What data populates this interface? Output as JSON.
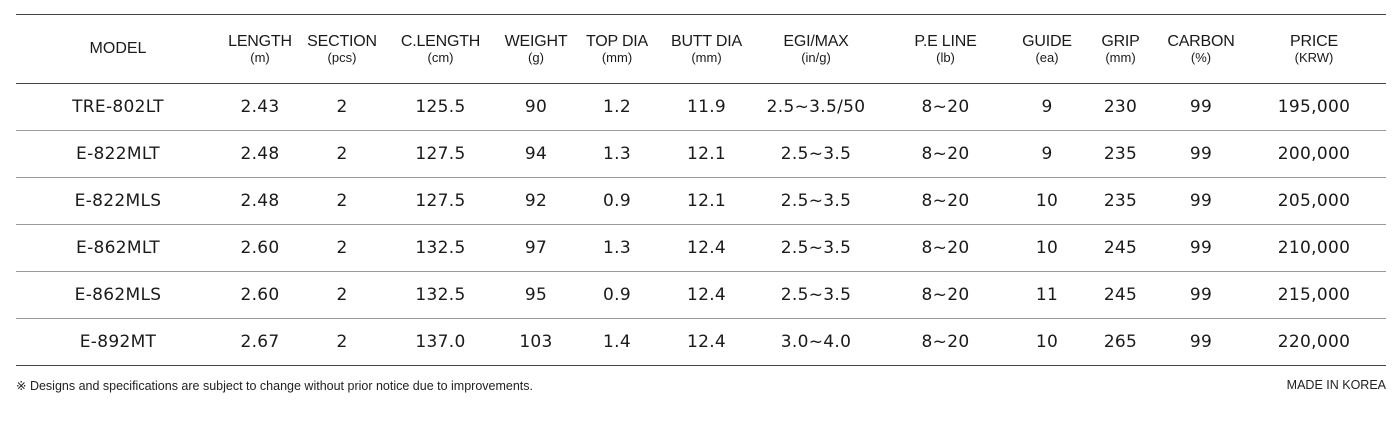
{
  "table": {
    "columns": [
      {
        "label": "MODEL",
        "unit": ""
      },
      {
        "label": "LENGTH",
        "unit": "(m)"
      },
      {
        "label": "SECTION",
        "unit": "(pcs)"
      },
      {
        "label": "C.LENGTH",
        "unit": "(cm)"
      },
      {
        "label": "WEIGHT",
        "unit": "(g)"
      },
      {
        "label": "TOP DIA",
        "unit": "(mm)"
      },
      {
        "label": "BUTT DIA",
        "unit": "(mm)"
      },
      {
        "label": "EGI/MAX",
        "unit": "(in/g)"
      },
      {
        "label": "P.E LINE",
        "unit": "(lb)"
      },
      {
        "label": "GUIDE",
        "unit": "(ea)"
      },
      {
        "label": "GRIP",
        "unit": "(mm)"
      },
      {
        "label": "CARBON",
        "unit": "(%)"
      },
      {
        "label": "PRICE",
        "unit": "(KRW)"
      }
    ],
    "rows": [
      [
        "TRE-802LT",
        "2.43",
        "2",
        "125.5",
        "90",
        "1.2",
        "11.9",
        "2.5~3.5/50",
        "8~20",
        "9",
        "230",
        "99",
        "195,000"
      ],
      [
        "E-822MLT",
        "2.48",
        "2",
        "127.5",
        "94",
        "1.3",
        "12.1",
        "2.5~3.5",
        "8~20",
        "9",
        "235",
        "99",
        "200,000"
      ],
      [
        "E-822MLS",
        "2.48",
        "2",
        "127.5",
        "92",
        "0.9",
        "12.1",
        "2.5~3.5",
        "8~20",
        "10",
        "235",
        "99",
        "205,000"
      ],
      [
        "E-862MLT",
        "2.60",
        "2",
        "132.5",
        "97",
        "1.3",
        "12.4",
        "2.5~3.5",
        "8~20",
        "10",
        "245",
        "99",
        "210,000"
      ],
      [
        "E-862MLS",
        "2.60",
        "2",
        "132.5",
        "95",
        "0.9",
        "12.4",
        "2.5~3.5",
        "8~20",
        "11",
        "245",
        "99",
        "215,000"
      ],
      [
        "E-892MT",
        "2.67",
        "2",
        "137.0",
        "103",
        "1.4",
        "12.4",
        "3.0~4.0",
        "8~20",
        "10",
        "265",
        "99",
        "220,000"
      ]
    ]
  },
  "footer": {
    "note": "※ Designs and specifications are subject to change without prior notice due to improvements.",
    "origin": "MADE IN KOREA"
  }
}
